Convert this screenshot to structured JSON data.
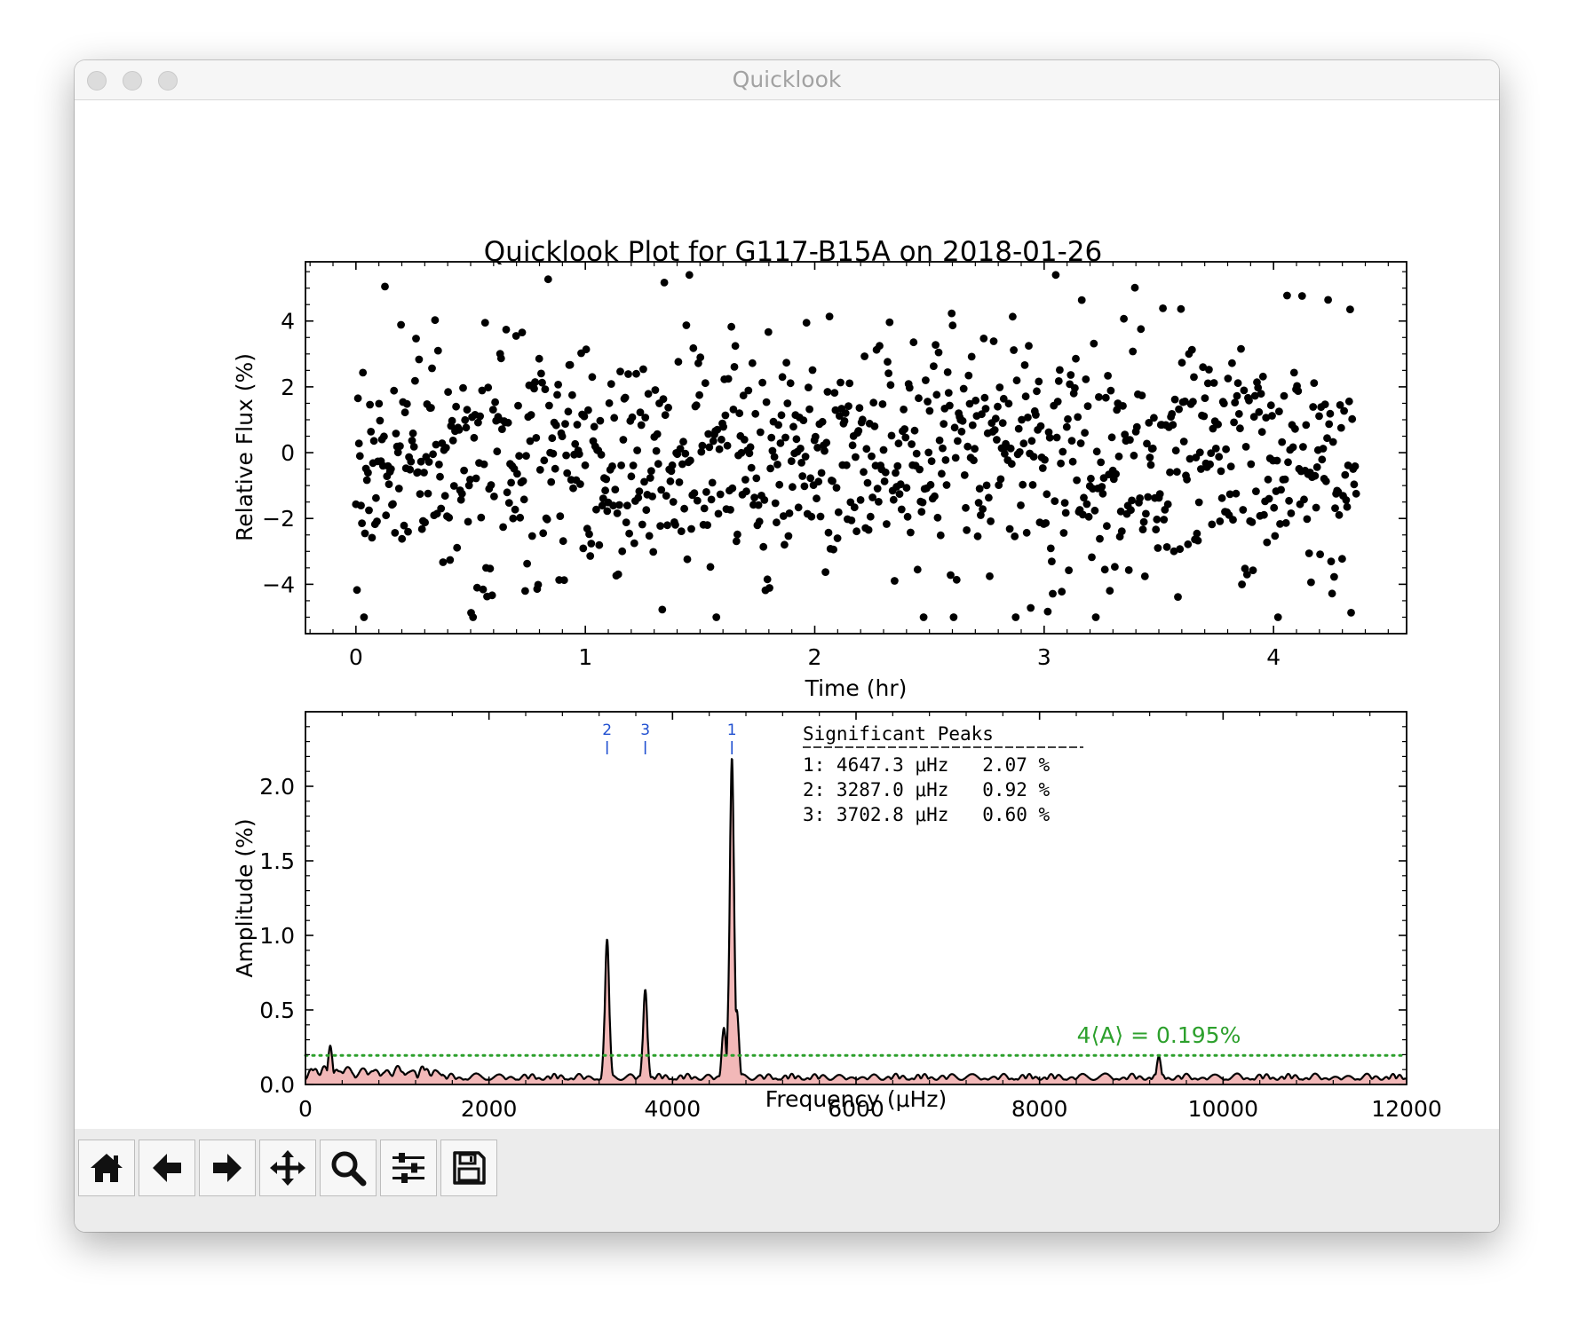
{
  "window": {
    "title": "Quicklook"
  },
  "toolbar": {
    "buttons": [
      {
        "name": "home-button",
        "icon": "home-icon"
      },
      {
        "name": "back-button",
        "icon": "arrow-left-icon"
      },
      {
        "name": "forward-button",
        "icon": "arrow-right-icon"
      },
      {
        "name": "pan-button",
        "icon": "move-icon"
      },
      {
        "name": "zoom-button",
        "icon": "magnifier-icon"
      },
      {
        "name": "configure-subplots-button",
        "icon": "sliders-icon"
      },
      {
        "name": "save-button",
        "icon": "floppy-disk-icon"
      }
    ]
  },
  "chart_data": [
    {
      "type": "scatter",
      "title": "Quicklook Plot for G117-B15A on 2018-01-26",
      "xlabel": "Time (hr)",
      "ylabel": "Relative Flux (%)",
      "xlim": [
        -0.22,
        4.58
      ],
      "ylim": [
        -5.5,
        5.8
      ],
      "xticks": [
        0,
        1,
        2,
        3,
        4
      ],
      "yticks": [
        -4,
        -2,
        0,
        2,
        4
      ],
      "xtick_labels": [
        "0",
        "1",
        "2",
        "3",
        "4"
      ],
      "ytick_labels": [
        "−4",
        "−2",
        "0",
        "2",
        "4"
      ],
      "marker_color": "#000000",
      "n_points": 1000,
      "x_range": [
        0.0,
        4.36
      ],
      "y_spread_sigma": 1.9
    },
    {
      "type": "line",
      "xlabel": "Frequency (μHz)",
      "ylabel": "Amplitude (%)",
      "xlim": [
        0,
        12000
      ],
      "ylim": [
        0,
        2.5
      ],
      "xticks": [
        0,
        2000,
        4000,
        6000,
        8000,
        10000,
        12000
      ],
      "yticks": [
        0.0,
        0.5,
        1.0,
        1.5,
        2.0
      ],
      "xtick_labels": [
        "0",
        "2000",
        "4000",
        "6000",
        "8000",
        "10000",
        "12000"
      ],
      "ytick_labels": [
        "0.0",
        "0.5",
        "1.0",
        "1.5",
        "2.0"
      ],
      "line_color": "#000000",
      "fill_color": "#f2b8b8",
      "peaks": [
        {
          "freq": 4647.3,
          "amp": 2.07
        },
        {
          "freq": 3287.0,
          "amp": 0.92
        },
        {
          "freq": 3702.8,
          "amp": 0.6
        },
        {
          "freq": 4700,
          "amp": 0.5
        },
        {
          "freq": 4560,
          "amp": 0.38
        },
        {
          "freq": 270,
          "amp": 0.26
        },
        {
          "freq": 9300,
          "amp": 0.19
        }
      ],
      "significance": {
        "value": 0.195,
        "label": "4⟨A⟩ = 0.195%",
        "color": "#2ca02c"
      },
      "peak_markers": [
        {
          "label": "2",
          "freq": 3287.0
        },
        {
          "label": "3",
          "freq": 3702.8
        },
        {
          "label": "1",
          "freq": 4647.3
        }
      ],
      "marker_color": "#1f4fd0",
      "table": {
        "header": "Significant Peaks",
        "rows": [
          "1: 4647.3 μHz   2.07 %",
          "2: 3287.0 μHz   0.92 %",
          "3: 3702.8 μHz   0.60 %"
        ]
      }
    }
  ]
}
